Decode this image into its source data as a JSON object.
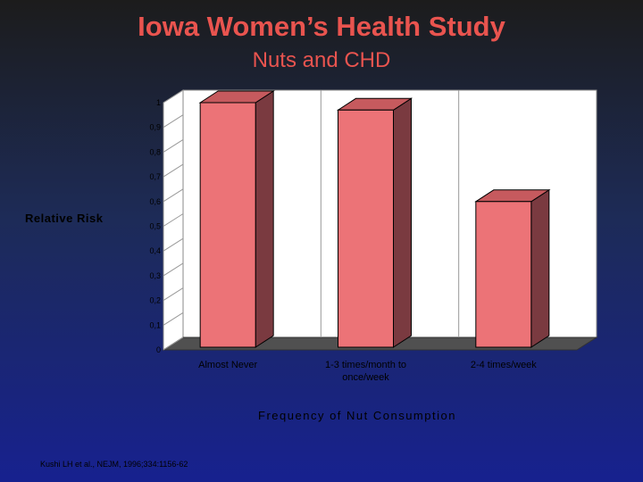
{
  "slide": {
    "title": "Iowa Women’s Health Study",
    "subtitle": "Nuts and CHD",
    "citation": "Kushi LH et al., NEJM, 1996;334:1156-62"
  },
  "chart_data": {
    "type": "bar",
    "title": "",
    "xlabel": "Frequency of Nut Consumption",
    "ylabel": "Relative Risk",
    "categories": [
      "Almost Never",
      "1-3 times/month to once/week",
      "2-4 times/week"
    ],
    "category_lines": [
      [
        "Almost Never"
      ],
      [
        "1-3 times/month to",
        "once/week"
      ],
      [
        "2-4 times/week"
      ]
    ],
    "values": [
      1.0,
      0.97,
      0.6
    ],
    "ylim": [
      0,
      1
    ],
    "yticks": [
      "0",
      "0,1",
      "0,2",
      "0,3",
      "0,4",
      "0,5",
      "0,6",
      "0,7",
      "0,8",
      "0,9",
      "1"
    ],
    "grid": "vertical",
    "three_d": true,
    "colors": {
      "bar_front": "#ec7377",
      "bar_side": "#7a3a40",
      "bar_top": "#c65a5e",
      "wall": "#ffffff",
      "floor": "#505050",
      "text": "#000000"
    }
  }
}
